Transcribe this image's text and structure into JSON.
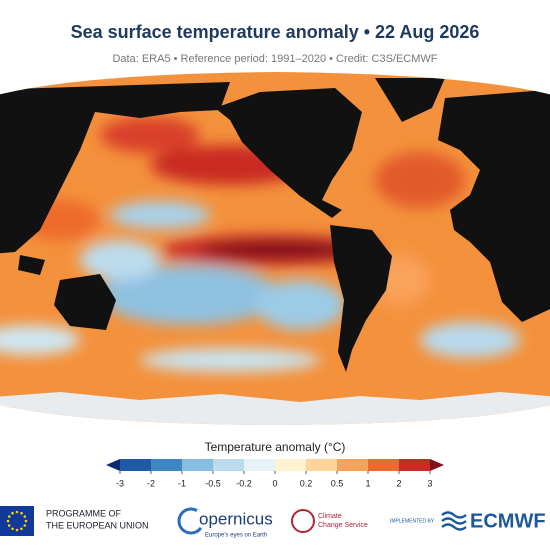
{
  "header": {
    "title": "Sea surface temperature anomaly • 22 Aug 2026",
    "subtitle": "Data: ERA5 • Reference period: 1991–2020 • Credit: C3S/ECMWF"
  },
  "colorbar": {
    "label": "Temperature anomaly (°C)",
    "ticks": [
      -3,
      -2,
      -1,
      -0.5,
      -0.2,
      0,
      0.2,
      0.5,
      1,
      2,
      3
    ],
    "colors": [
      "#0b2a6f",
      "#1f5aa8",
      "#3f86c4",
      "#86bde0",
      "#bcdcee",
      "#e6f2f8",
      "#fdf3d0",
      "#fdd49a",
      "#f9a25a",
      "#ee6a2c",
      "#c92a22",
      "#7f0f18"
    ]
  },
  "logos": {
    "eu": [
      "PROGRAMME OF",
      "THE EUROPEAN UNION"
    ],
    "copernicus": {
      "name": "opernicus",
      "tagline": "Europe's eyes on Earth"
    },
    "c3s": [
      "Climate",
      "Change Service"
    ],
    "ecmwf": {
      "implemented": "IMPLEMENTED BY",
      "name": "ECMWF"
    }
  }
}
